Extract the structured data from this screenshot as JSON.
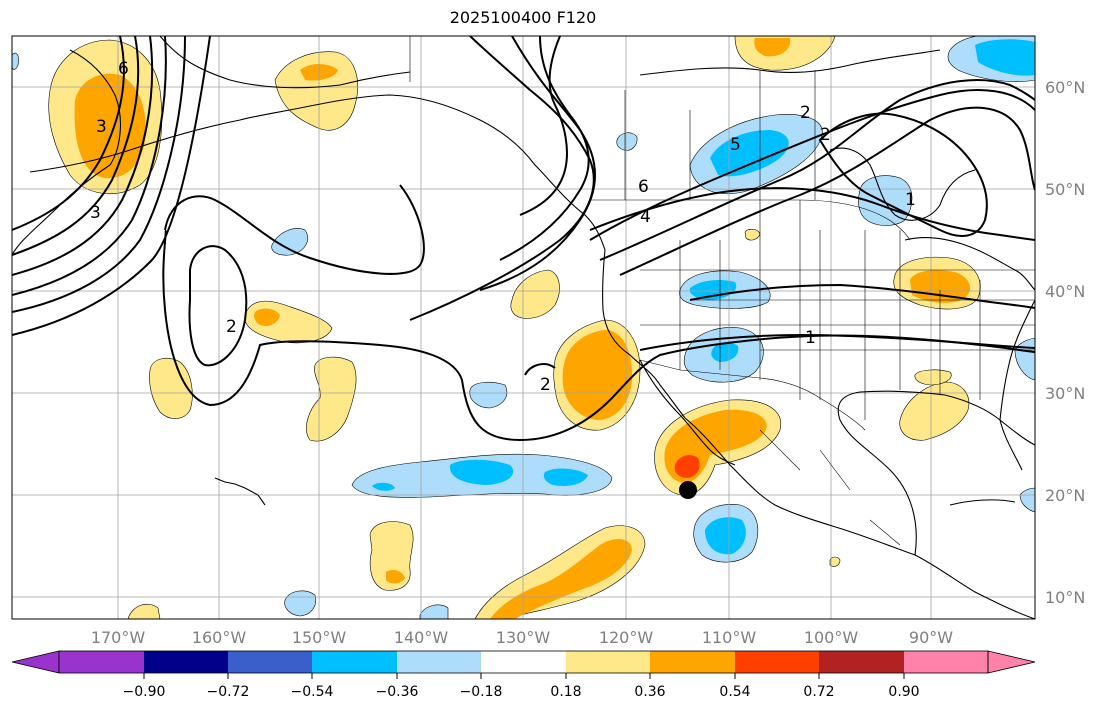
{
  "title": "2025100400 F120",
  "lat_labels": [
    "60°N",
    "50°N",
    "40°N",
    "30°N",
    "20°N",
    "10°N"
  ],
  "lon_labels": [
    "170°W",
    "160°W",
    "150°W",
    "140°W",
    "130°W",
    "120°W",
    "110°W",
    "100°W",
    "90°W"
  ],
  "colorbar": {
    "ticks": [
      "−0.90",
      "−0.72",
      "−0.54",
      "−0.36",
      "−0.18",
      "0.18",
      "0.36",
      "0.54",
      "0.72",
      "0.90"
    ],
    "colors": [
      "#9a32cd",
      "#00008b",
      "#3a5fcd",
      "#00bfff",
      "#aeddfb",
      "#ffffff",
      "#ffe88a",
      "#ffa500",
      "#ff3f00",
      "#b22222",
      "#ff82ab"
    ]
  },
  "contour_labels": [
    "6",
    "3",
    "2",
    "2",
    "6",
    "4",
    "5",
    "2",
    "1",
    "1",
    "2",
    "3"
  ],
  "fill_colors": {
    "light_blue": "#aeddfb",
    "blue": "#00bfff",
    "yellow": "#ffe88a",
    "orange": "#ffa500",
    "red": "#ff3f00"
  },
  "marker_color": "#000000"
}
